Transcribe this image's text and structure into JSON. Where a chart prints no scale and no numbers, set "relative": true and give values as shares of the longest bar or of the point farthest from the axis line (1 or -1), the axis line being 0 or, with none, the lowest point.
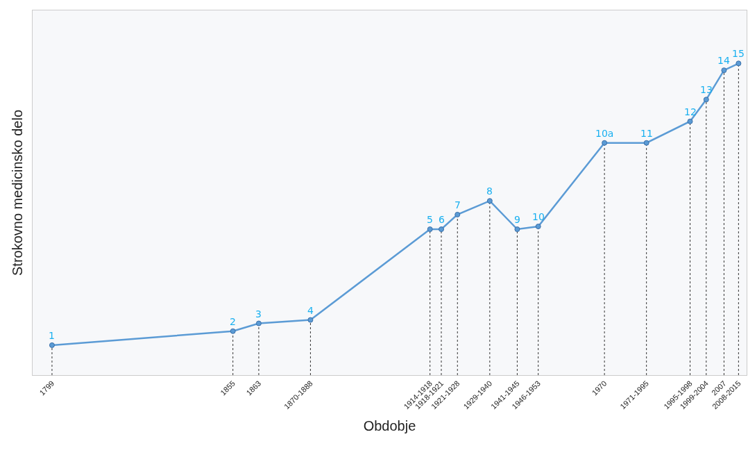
{
  "chart_data": {
    "type": "line",
    "relative": true,
    "xlabel": "Obdobje",
    "ylabel": "Strokovno medicinsko delo",
    "x": [
      1799,
      1855,
      1863,
      1879,
      1916,
      1919.5,
      1924.5,
      1934.5,
      1943,
      1949.5,
      1970,
      1983,
      1996.5,
      2001.5,
      2007,
      2011.5
    ],
    "series": [
      {
        "color": "#5b9bd5",
        "values": [
          0.096,
          0.141,
          0.166,
          0.177,
          0.468,
          0.468,
          0.515,
          0.559,
          0.468,
          0.477,
          0.745,
          0.745,
          0.814,
          0.884,
          0.978,
          1
        ]
      }
    ],
    "annotations": [
      {
        "text": "1",
        "x": 1799,
        "y": 0.096
      },
      {
        "text": "2",
        "x": 1855,
        "y": 0.141
      },
      {
        "text": "3",
        "x": 1863,
        "y": 0.166
      },
      {
        "text": "4",
        "x": 1879,
        "y": 0.177
      },
      {
        "text": "5",
        "x": 1916,
        "y": 0.468
      },
      {
        "text": "6",
        "x": 1919.5,
        "y": 0.468
      },
      {
        "text": "7",
        "x": 1924.5,
        "y": 0.515
      },
      {
        "text": "8",
        "x": 1934.5,
        "y": 0.559
      },
      {
        "text": "9",
        "x": 1943,
        "y": 0.468
      },
      {
        "text": "10",
        "x": 1949.5,
        "y": 0.477
      },
      {
        "text": "10a",
        "x": 1970,
        "y": 0.745
      },
      {
        "text": "11",
        "x": 1983,
        "y": 0.745
      },
      {
        "text": "12",
        "x": 1996.5,
        "y": 0.814
      },
      {
        "text": "13",
        "x": 2001.5,
        "y": 0.884
      },
      {
        "text": "14",
        "x": 2007,
        "y": 0.978
      },
      {
        "text": "15",
        "x": 2011.5,
        "y": 1
      }
    ],
    "xlim": [
      1793,
      2014
    ],
    "xticks": [
      {
        "value": 1799,
        "label": "1799"
      },
      {
        "value": 1855,
        "label": "1855"
      },
      {
        "value": 1863,
        "label": "1863"
      },
      {
        "value": 1879,
        "label": "1870-1888"
      },
      {
        "value": 1916,
        "label": "1914-1918"
      },
      {
        "value": 1919.5,
        "label": "1918-1921"
      },
      {
        "value": 1924.5,
        "label": "1921-1928"
      },
      {
        "value": 1934.5,
        "label": "1929-1940"
      },
      {
        "value": 1943,
        "label": "1941-1945"
      },
      {
        "value": 1949.5,
        "label": "1946-1953"
      },
      {
        "value": 1970,
        "label": "1970"
      },
      {
        "value": 1983,
        "label": "1971-1995"
      },
      {
        "value": 1996.5,
        "label": "1995-1998"
      },
      {
        "value": 2001.5,
        "label": "1999-2004"
      },
      {
        "value": 2007,
        "label": "2007"
      },
      {
        "value": 2011.5,
        "label": "2008-2015"
      }
    ],
    "marker": "circle",
    "grid": "x"
  }
}
